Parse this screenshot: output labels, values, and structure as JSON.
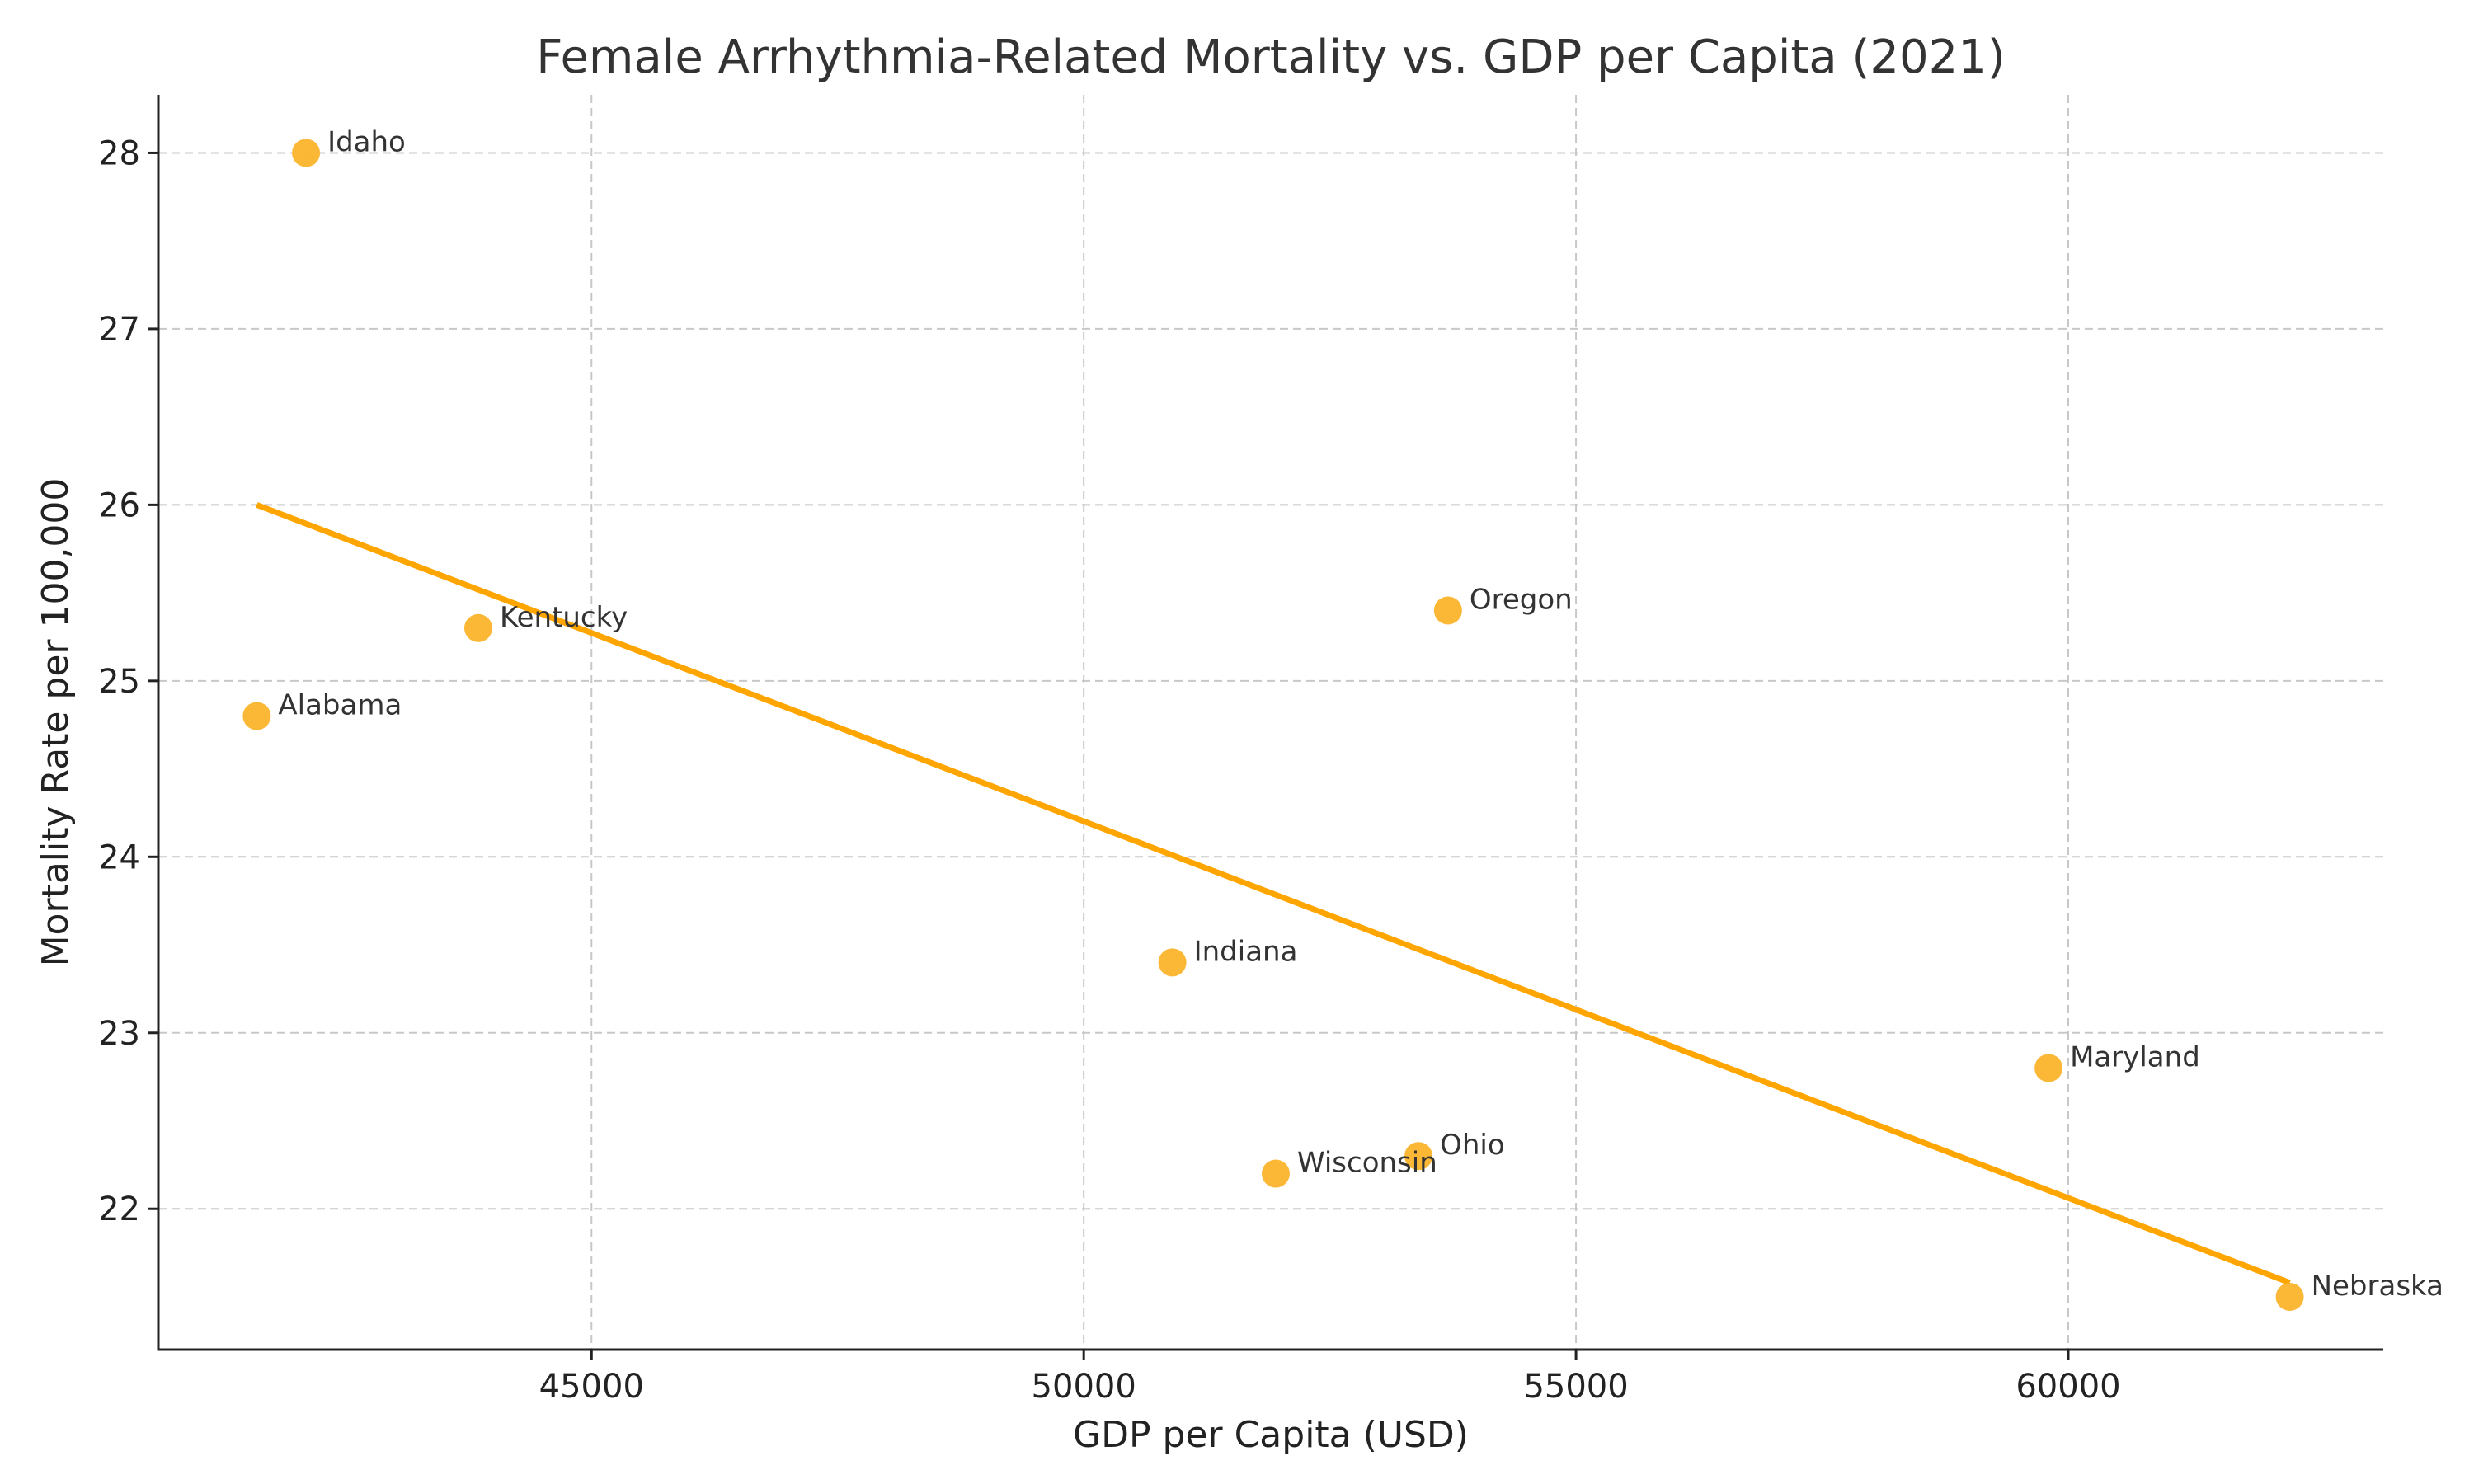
{
  "chart_data": {
    "type": "scatter",
    "title": "Female Arrhythmia-Related Mortality vs. GDP per Capita (2021)",
    "xlabel": "GDP per Capita (USD)",
    "ylabel": "Mortality Rate per 100,000",
    "xlim": [
      40600,
      63200
    ],
    "ylim": [
      21.2,
      28.33
    ],
    "xticks": [
      45000,
      50000,
      55000,
      60000
    ],
    "yticks": [
      22,
      23,
      24,
      25,
      26,
      27,
      28
    ],
    "grid": true,
    "point_color": "#FBB32B",
    "trend_color": "#FFA500",
    "points": [
      {
        "label": "Idaho",
        "x": 42100,
        "y": 28.0
      },
      {
        "label": "Kentucky",
        "x": 43850,
        "y": 25.3
      },
      {
        "label": "Alabama",
        "x": 41600,
        "y": 24.8
      },
      {
        "label": "Oregon",
        "x": 53700,
        "y": 25.4
      },
      {
        "label": "Indiana",
        "x": 50900,
        "y": 23.4
      },
      {
        "label": "Maryland",
        "x": 59800,
        "y": 22.8
      },
      {
        "label": "Ohio",
        "x": 53400,
        "y": 22.3
      },
      {
        "label": "Wisconsin",
        "x": 51950,
        "y": 22.2
      },
      {
        "label": "Nebraska",
        "x": 62250,
        "y": 21.5
      }
    ],
    "trendline": {
      "x": [
        41600,
        62250
      ],
      "y": [
        26.0,
        21.58
      ]
    }
  }
}
